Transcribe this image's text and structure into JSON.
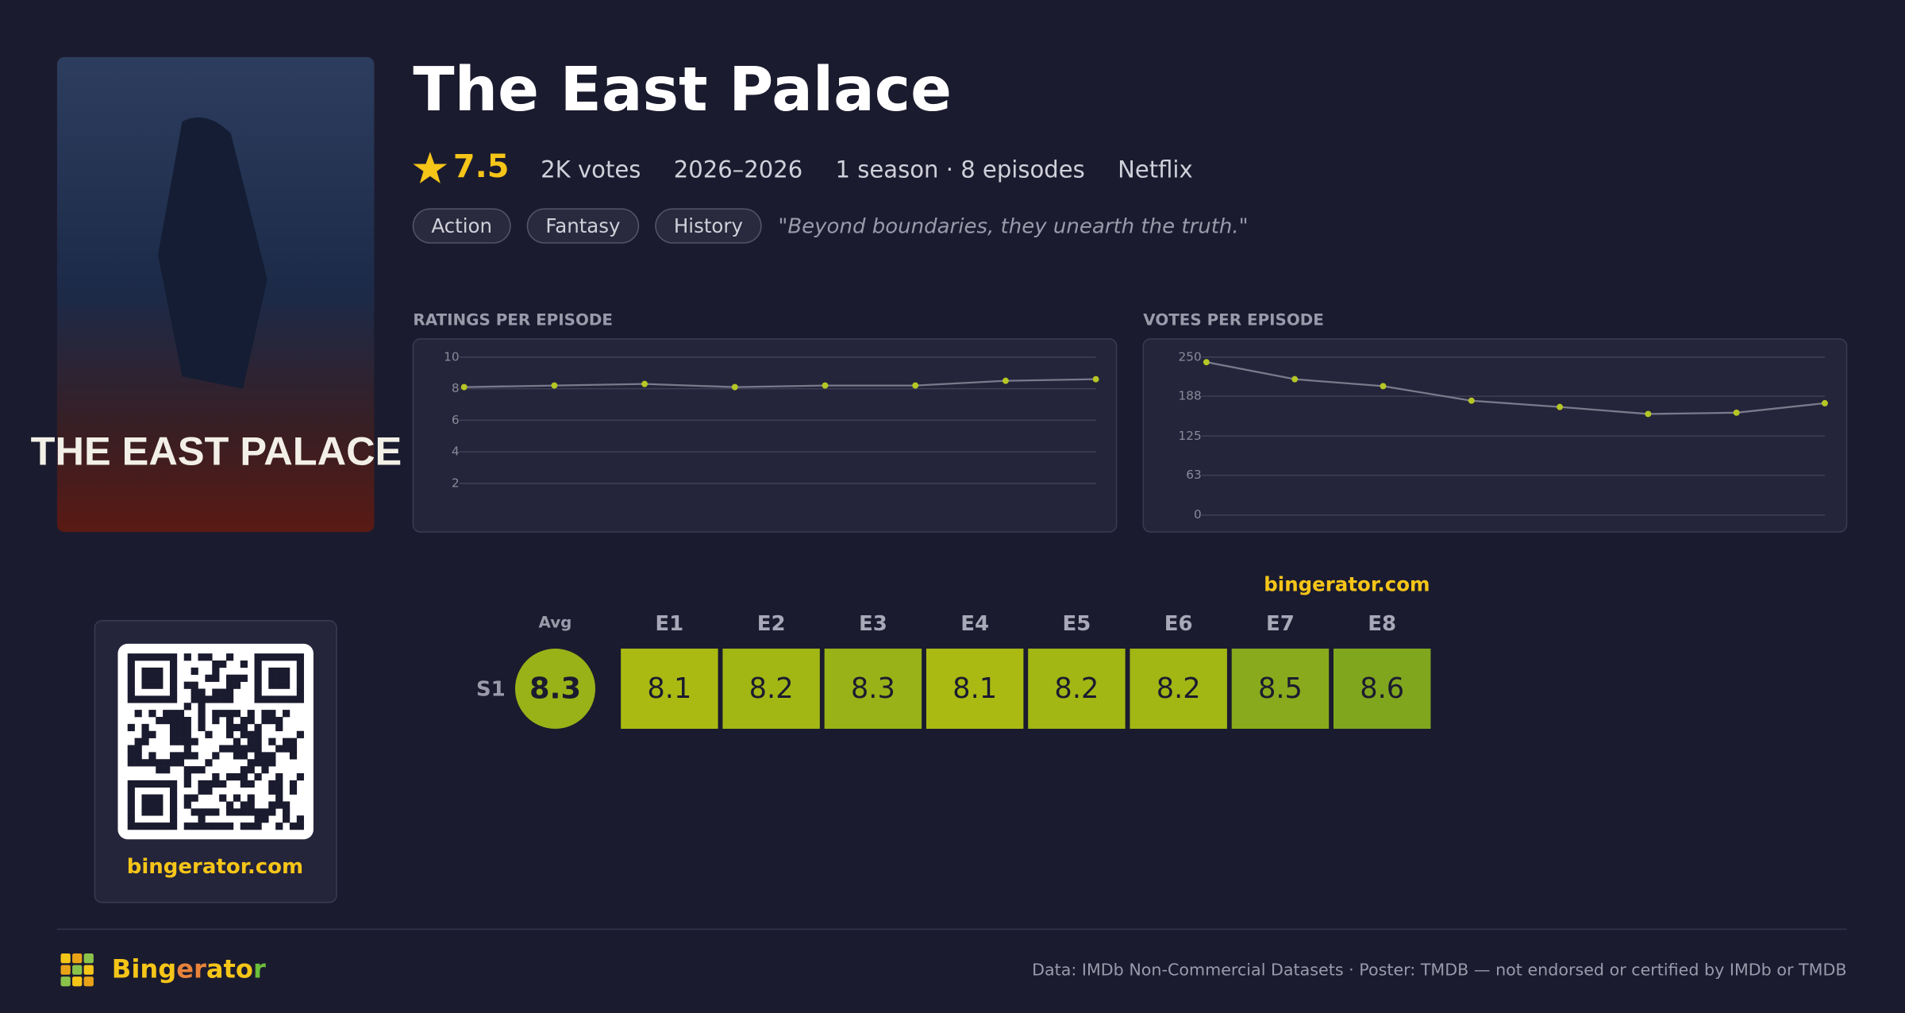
{
  "show": {
    "title": "The East Palace",
    "rating": 7.5,
    "votes": "2K votes",
    "years": "2026–2026",
    "seasons": "1 season · 8 episodes",
    "network": "Netflix",
    "genres": [
      "Action",
      "Fantasy",
      "History"
    ],
    "tagline": "\"Beyond boundaries, they unearth the truth.\"",
    "poster_text": "THE EAST PALACE"
  },
  "chart_data": [
    {
      "type": "line",
      "title": "RATINGS PER EPISODE",
      "x": [
        1,
        2,
        3,
        4,
        5,
        6,
        7,
        8
      ],
      "series": [
        {
          "name": "Rating",
          "color": "#b5c724",
          "values": [
            8.1,
            8.2,
            8.3,
            8.1,
            8.2,
            8.2,
            8.5,
            8.6
          ]
        }
      ],
      "ylim": [
        0,
        10
      ],
      "yticks": [
        2,
        4,
        6,
        8,
        10
      ],
      "grid": true
    },
    {
      "type": "line",
      "title": "VOTES PER EPISODE",
      "x": [
        1,
        2,
        3,
        4,
        5,
        6,
        7,
        8
      ],
      "series": [
        {
          "name": "Votes",
          "color": "#b5c724",
          "values": [
            242,
            215,
            204,
            181,
            171,
            160,
            162,
            177
          ]
        }
      ],
      "ylim": [
        0,
        250
      ],
      "yticks": [
        0,
        63,
        125,
        188,
        250
      ],
      "grid": true
    }
  ],
  "heatmap": {
    "site": "bingerator.com",
    "avg_label": "Avg",
    "avg": 8.3,
    "season": "S1",
    "episodes": [
      "E1",
      "E2",
      "E3",
      "E4",
      "E5",
      "E6",
      "E7",
      "E8"
    ]
  },
  "qr": {
    "site": "bingerator.com"
  },
  "footer": {
    "brand": "Bingerator",
    "credit": "Data: IMDb Non-Commercial Datasets · Poster: TMDB — not endorsed or certified by IMDb or TMDB"
  }
}
